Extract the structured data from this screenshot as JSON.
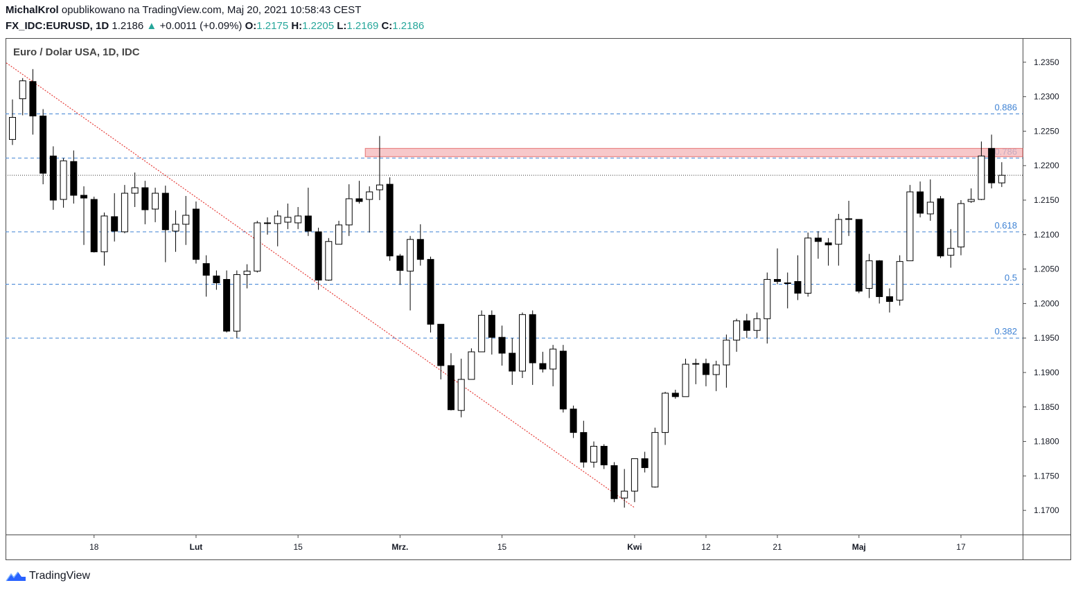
{
  "header": {
    "author": "MichalKrol",
    "published_text": "opublikowano na TradingView.com, Maj 20, 2021 10:58:43 CEST",
    "symbol": "FX_IDC:EURUSD, 1D",
    "last_price": "1.2186",
    "change": "+0.0011 (+0.09%)",
    "open_label": "O:",
    "open": "1.2175",
    "high_label": "H:",
    "high": "1.2205",
    "low_label": "L:",
    "low": "1.2169",
    "close_label": "C:",
    "close": "1.2186"
  },
  "footer": {
    "brand": "TradingView"
  },
  "colors": {
    "accent": "#26a69a",
    "fib": "#3e82d4",
    "trend": "#e53935",
    "zone_fill": "#f4b6b8",
    "zone_border": "#e57373"
  },
  "chart_data": {
    "type": "candlestick",
    "title": "Euro / Dolar USA, 1D, IDC",
    "ylim": [
      1.1665,
      1.2385
    ],
    "y_ticks": [
      1.235,
      1.23,
      1.225,
      1.22,
      1.215,
      1.21,
      1.205,
      1.2,
      1.195,
      1.19,
      1.185,
      1.18,
      1.175,
      1.17
    ],
    "x_ticks": [
      {
        "i": 8,
        "label": "18"
      },
      {
        "i": 18,
        "label": "Lut"
      },
      {
        "i": 28,
        "label": "15"
      },
      {
        "i": 38,
        "label": "Mrz."
      },
      {
        "i": 48,
        "label": "15"
      },
      {
        "i": 61,
        "label": "Kwi"
      },
      {
        "i": 68,
        "label": "12"
      },
      {
        "i": 75,
        "label": "21"
      },
      {
        "i": 83,
        "label": "Maj"
      },
      {
        "i": 93,
        "label": "17"
      }
    ],
    "fib_levels": [
      {
        "label": "0.886",
        "value": 1.2275
      },
      {
        "label": "0.786",
        "value": 1.2211
      },
      {
        "label": "0.618",
        "value": 1.2104
      },
      {
        "label": "0.5",
        "value": 1.2028
      },
      {
        "label": "0.382",
        "value": 1.195
      }
    ],
    "current_price_line": 1.2186,
    "resistance_zone": {
      "from_index": 35,
      "top": 1.2225,
      "bottom": 1.2213
    },
    "trendline": {
      "start_index": -0.6,
      "start_price": 1.2349,
      "end_index": 61,
      "end_price": 1.1704
    },
    "candles": [
      [
        1.2238,
        1.2296,
        1.223,
        1.227
      ],
      [
        1.2297,
        1.2327,
        1.2273,
        1.2323
      ],
      [
        1.2322,
        1.234,
        1.2245,
        1.2272
      ],
      [
        1.2272,
        1.2282,
        1.2173,
        1.2189
      ],
      [
        1.2214,
        1.2228,
        1.2136,
        1.215
      ],
      [
        1.2151,
        1.2211,
        1.2139,
        1.2207
      ],
      [
        1.2206,
        1.2222,
        1.2145,
        1.2157
      ],
      [
        1.2157,
        1.217,
        1.2085,
        1.2153
      ],
      [
        1.2151,
        1.2155,
        1.2074,
        1.2075
      ],
      [
        1.2075,
        1.2132,
        1.2055,
        1.2127
      ],
      [
        1.2126,
        1.216,
        1.209,
        1.2105
      ],
      [
        1.2104,
        1.2172,
        1.2102,
        1.216
      ],
      [
        1.216,
        1.219,
        1.214,
        1.2168
      ],
      [
        1.2168,
        1.2178,
        1.2115,
        1.2136
      ],
      [
        1.2137,
        1.2168,
        1.2118,
        1.216
      ],
      [
        1.216,
        1.2171,
        1.206,
        1.2107
      ],
      [
        1.2105,
        1.2135,
        1.2075,
        1.2115
      ],
      [
        1.2115,
        1.2156,
        1.2085,
        1.2128
      ],
      [
        1.2137,
        1.2148,
        1.2058,
        1.2064
      ],
      [
        1.2058,
        1.207,
        1.201,
        1.2041
      ],
      [
        1.204,
        1.2048,
        1.202,
        1.203
      ],
      [
        1.2035,
        1.2048,
        1.1958,
        1.196
      ],
      [
        1.196,
        1.2048,
        1.195,
        1.2042
      ],
      [
        1.2042,
        1.2057,
        1.2022,
        1.2047
      ],
      [
        1.2047,
        1.212,
        1.2045,
        1.2117
      ],
      [
        1.2117,
        1.2125,
        1.21,
        1.2116
      ],
      [
        1.2116,
        1.2135,
        1.2083,
        1.2127
      ],
      [
        1.2118,
        1.2145,
        1.2108,
        1.2125
      ],
      [
        1.2117,
        1.214,
        1.2108,
        1.2127
      ],
      [
        1.2127,
        1.2168,
        1.2098,
        1.2105
      ],
      [
        1.2104,
        1.211,
        1.202,
        1.2034
      ],
      [
        1.2034,
        1.2095,
        1.2033,
        1.209
      ],
      [
        1.2086,
        1.212,
        1.2087,
        1.2114
      ],
      [
        1.2114,
        1.2173,
        1.2098,
        1.2152
      ],
      [
        1.2152,
        1.2178,
        1.2145,
        1.2148
      ],
      [
        1.2151,
        1.217,
        1.2103,
        1.2162
      ],
      [
        1.2165,
        1.2243,
        1.215,
        1.2172
      ],
      [
        1.2173,
        1.2183,
        1.2062,
        1.2069
      ],
      [
        1.2069,
        1.2072,
        1.2027,
        1.2048
      ],
      [
        1.2047,
        1.2098,
        1.199,
        1.2093
      ],
      [
        1.2093,
        1.2115,
        1.2055,
        1.2064
      ],
      [
        1.2064,
        1.2068,
        1.1958,
        1.197
      ],
      [
        1.197,
        1.197,
        1.189,
        1.191
      ],
      [
        1.191,
        1.1928,
        1.1845,
        1.1846
      ],
      [
        1.1845,
        1.192,
        1.1835,
        1.189
      ],
      [
        1.189,
        1.1935,
        1.189,
        1.193
      ],
      [
        1.193,
        1.199,
        1.193,
        1.1983
      ],
      [
        1.1983,
        1.199,
        1.1926,
        1.1951
      ],
      [
        1.1951,
        1.1968,
        1.191,
        1.1928
      ],
      [
        1.1928,
        1.195,
        1.1882,
        1.1902
      ],
      [
        1.1902,
        1.1987,
        1.1892,
        1.1984
      ],
      [
        1.1984,
        1.199,
        1.1882,
        1.1914
      ],
      [
        1.1913,
        1.193,
        1.19,
        1.1905
      ],
      [
        1.1905,
        1.194,
        1.188,
        1.1934
      ],
      [
        1.1931,
        1.194,
        1.1842,
        1.1847
      ],
      [
        1.1847,
        1.1852,
        1.1805,
        1.1813
      ],
      [
        1.1813,
        1.183,
        1.1762,
        1.177
      ],
      [
        1.177,
        1.18,
        1.1762,
        1.1793
      ],
      [
        1.1793,
        1.1796,
        1.176,
        1.1766
      ],
      [
        1.1765,
        1.177,
        1.1712,
        1.1717
      ],
      [
        1.1718,
        1.176,
        1.1704,
        1.1728
      ],
      [
        1.1728,
        1.1775,
        1.1712,
        1.1775
      ],
      [
        1.1775,
        1.1785,
        1.1755,
        1.1762
      ],
      [
        1.1734,
        1.182,
        1.1733,
        1.1813
      ],
      [
        1.1813,
        1.1872,
        1.1795,
        1.187
      ],
      [
        1.187,
        1.1875,
        1.1862,
        1.1865
      ],
      [
        1.1865,
        1.192,
        1.1865,
        1.1912
      ],
      [
        1.1912,
        1.192,
        1.1883,
        1.1913
      ],
      [
        1.1913,
        1.192,
        1.188,
        1.1897
      ],
      [
        1.1897,
        1.1917,
        1.1873,
        1.1911
      ],
      [
        1.1911,
        1.1955,
        1.1878,
        1.1947
      ],
      [
        1.1947,
        1.1978,
        1.193,
        1.1975
      ],
      [
        1.1975,
        1.1985,
        1.195,
        1.1961
      ],
      [
        1.1961,
        1.1987,
        1.195,
        1.1978
      ],
      [
        1.1978,
        1.2045,
        1.1942,
        1.2035
      ],
      [
        1.2035,
        1.208,
        1.2028,
        1.2032
      ],
      [
        1.203,
        1.2045,
        1.1993,
        1.203
      ],
      [
        1.2032,
        1.207,
        1.2005,
        1.2015
      ],
      [
        1.2015,
        1.2103,
        1.201,
        1.2095
      ],
      [
        1.2095,
        1.2105,
        1.2065,
        1.209
      ],
      [
        1.2088,
        1.2095,
        1.2055,
        1.2085
      ],
      [
        1.2086,
        1.213,
        1.2055,
        1.2122
      ],
      [
        1.2123,
        1.2149,
        1.2098,
        1.2122
      ],
      [
        1.2122,
        1.2122,
        1.2015,
        1.2018
      ],
      [
        1.2022,
        1.2072,
        1.2008,
        1.2062
      ],
      [
        1.2062,
        1.2063,
        1.2,
        1.201
      ],
      [
        1.201,
        1.2022,
        1.1987,
        1.2003
      ],
      [
        1.2005,
        1.207,
        1.1997,
        1.2061
      ],
      [
        1.2062,
        1.2172,
        1.2062,
        1.2162
      ],
      [
        1.2162,
        1.2177,
        1.2125,
        1.2131
      ],
      [
        1.213,
        1.218,
        1.212,
        1.2147
      ],
      [
        1.2152,
        1.2156,
        1.2066,
        1.2069
      ],
      [
        1.207,
        1.2108,
        1.2052,
        1.208
      ],
      [
        1.2082,
        1.215,
        1.207,
        1.2145
      ],
      [
        1.2148,
        1.2167,
        1.2146,
        1.2151
      ],
      [
        1.2151,
        1.2235,
        1.215,
        1.2214
      ],
      [
        1.2225,
        1.2245,
        1.2167,
        1.2175
      ],
      [
        1.2175,
        1.2205,
        1.2169,
        1.2186
      ]
    ]
  }
}
